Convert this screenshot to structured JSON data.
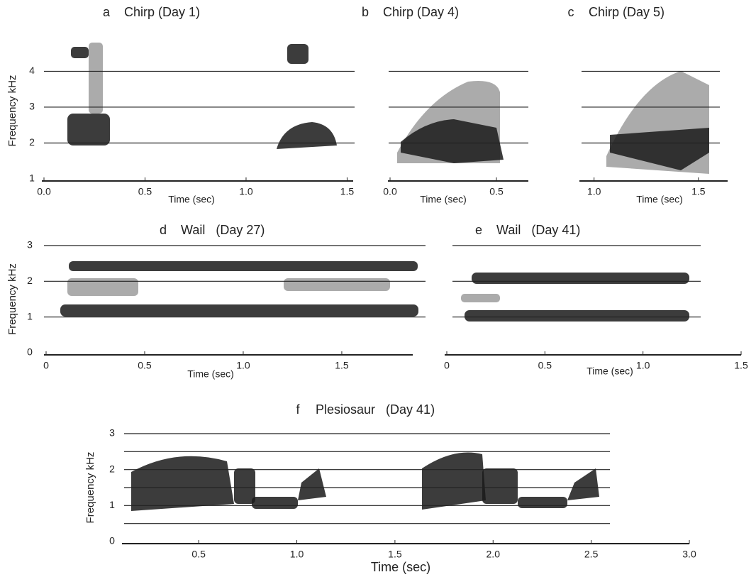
{
  "chart_data": [
    {
      "type": "spectrogram",
      "panel": "a",
      "title": "Chirp (Day 1)",
      "x_label": "Time (sec)",
      "y_label": "Frequency kHz",
      "xlim": [
        0,
        1.53
      ],
      "ylim": [
        1,
        4.8
      ],
      "xticks": [
        {
          "value": 0,
          "label": "0.0"
        },
        0.5,
        {
          "value": 1,
          "label": "1.0"
        },
        1.5
      ],
      "yticks": [
        1,
        2,
        3,
        4
      ],
      "gridlines": [
        2,
        3,
        4
      ]
    },
    {
      "type": "spectrogram",
      "panel": "b",
      "title": "Chirp (Day 4)",
      "x_label": "Time (sec)",
      "xlim": [
        0,
        0.65
      ],
      "ylim": [
        1,
        4.8
      ],
      "xticks": [
        {
          "value": 0,
          "label": "0.0"
        },
        0.5
      ],
      "yticks": [],
      "gridlines": [
        2,
        3,
        4
      ]
    },
    {
      "type": "spectrogram",
      "panel": "c",
      "title": "Chirp (Day 5)",
      "x_label": "Time (sec)",
      "xlim": [
        0.94,
        1.64
      ],
      "ylim": [
        1,
        4.8
      ],
      "xticks": [
        {
          "value": 1,
          "label": "1.0"
        },
        1.5
      ],
      "yticks": [],
      "gridlines": [
        2,
        3,
        4
      ]
    },
    {
      "type": "spectrogram",
      "panel": "d",
      "title": "Wail   (Day 27)",
      "x_label": "Time (sec)",
      "y_label": "Frequency kHz",
      "xlim": [
        0,
        1.86
      ],
      "ylim": [
        0,
        3
      ],
      "xticks": [
        0,
        0.5,
        {
          "value": 1,
          "label": "1.0"
        },
        1.5
      ],
      "yticks": [
        0,
        1,
        2,
        3
      ],
      "gridlines": [
        1,
        2,
        3
      ]
    },
    {
      "type": "spectrogram",
      "panel": "e",
      "title": "Wail   (Day 41)",
      "x_label": "Time (sec)",
      "xlim": [
        0,
        1.5
      ],
      "ylim": [
        0,
        3
      ],
      "xticks": [
        0,
        0.5,
        {
          "value": 1,
          "label": "1.0"
        },
        1.5
      ],
      "yticks": [],
      "gridlines": [
        1,
        2,
        3
      ]
    },
    {
      "type": "spectrogram",
      "panel": "f",
      "title": "Plesiosaur   (Day 41)",
      "x_label": "Time (sec)",
      "y_label": "Frequency kHz",
      "xlim": [
        0.12,
        3.0
      ],
      "ylim": [
        0,
        3
      ],
      "xticks": [
        0.5,
        {
          "value": 1,
          "label": "1.0"
        },
        1.5,
        {
          "value": 2,
          "label": "2.0"
        },
        2.5,
        {
          "value": 3,
          "label": "3.0"
        }
      ],
      "yticks": [
        0,
        1,
        2,
        3
      ],
      "gridlines": [
        0.5,
        1,
        1.5,
        2,
        2.5,
        3
      ]
    }
  ]
}
